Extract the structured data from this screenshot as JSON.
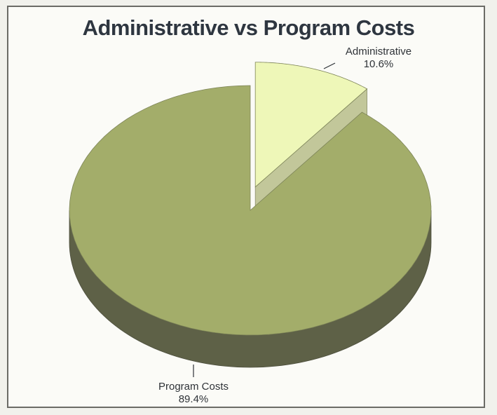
{
  "chart_data": {
    "type": "pie",
    "title": "Administrative vs Program Costs",
    "slices": [
      {
        "label": "Program Costs",
        "percent_label": "89.4%",
        "value": 89.4,
        "color": "#a3ad6a",
        "side_color": "#5e6147"
      },
      {
        "label": "Administrative",
        "percent_label": "10.6%",
        "value": 10.6,
        "color": "#eef7b8",
        "side_color": "#c2c79a",
        "exploded": true
      }
    ],
    "legend": "none",
    "three_d": true
  }
}
